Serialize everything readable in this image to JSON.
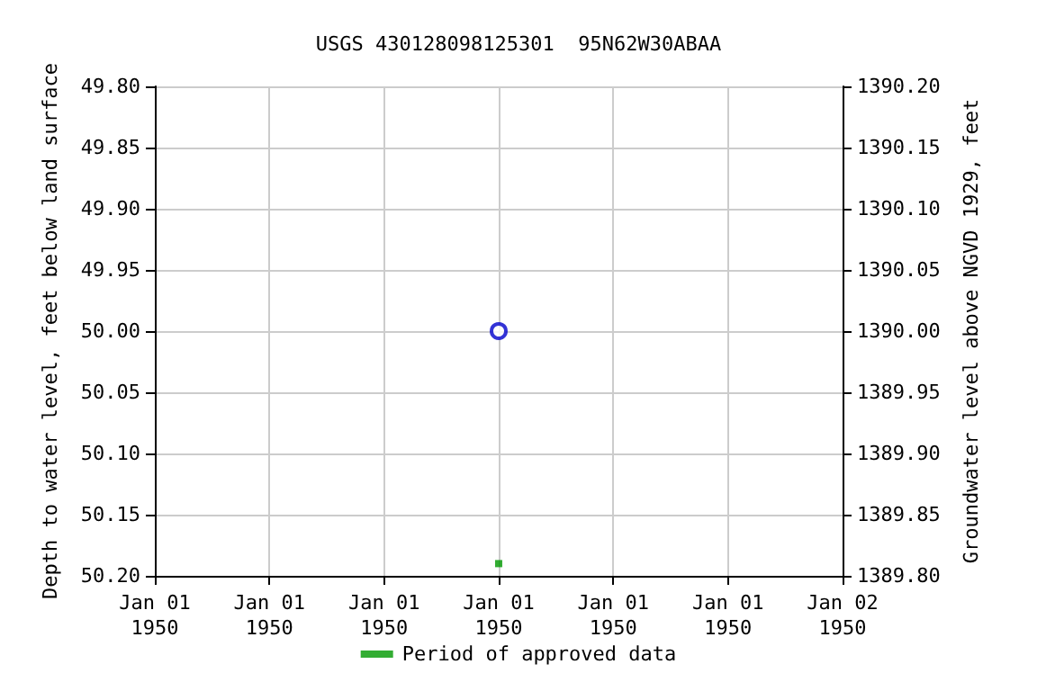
{
  "chart_data": {
    "type": "scatter",
    "title": "USGS 430128098125301  95N62W30ABAA",
    "xlabel": null,
    "ylabel": "Depth to water level, feet below land surface",
    "y2label": "Groundwater level above NGVD 1929, feet",
    "x": [
      "1950-01-01T12:00"
    ],
    "series": [
      {
        "color": "#0000cc",
        "marker": "circle",
        "values": [
          50.0
        ]
      },
      {
        "name": "Period of approved data",
        "color": "#009900",
        "marker": "square",
        "values": [
          50.19
        ]
      }
    ],
    "xlim": [
      "1950-01-01T00:00",
      "1950-01-02T00:00"
    ],
    "xticks": [
      {
        "value": "1950-01-01T00:00",
        "label": "Jan 01\n1950"
      },
      {
        "value": "1950-01-01T04:00",
        "label": "Jan 01\n1950"
      },
      {
        "value": "1950-01-01T08:00",
        "label": "Jan 01\n1950"
      },
      {
        "value": "1950-01-01T12:00",
        "label": "Jan 01\n1950"
      },
      {
        "value": "1950-01-01T16:00",
        "label": "Jan 01\n1950"
      },
      {
        "value": "1950-01-01T20:00",
        "label": "Jan 01\n1950"
      },
      {
        "value": "1950-01-02T00:00",
        "label": "Jan 02\n1950"
      }
    ],
    "ylim": [
      50.2,
      49.8
    ],
    "yticks": [
      {
        "value": 49.8,
        "label": "49.80"
      },
      {
        "value": 49.85,
        "label": "49.85"
      },
      {
        "value": 49.9,
        "label": "49.90"
      },
      {
        "value": 49.95,
        "label": "49.95"
      },
      {
        "value": 50.0,
        "label": "50.00"
      },
      {
        "value": 50.05,
        "label": "50.05"
      },
      {
        "value": 50.1,
        "label": "50.10"
      },
      {
        "value": 50.15,
        "label": "50.15"
      },
      {
        "value": 50.2,
        "label": "50.20"
      }
    ],
    "y2lim": [
      1389.8,
      1390.2
    ],
    "y2ticks": [
      {
        "value": 1390.2,
        "label": "1390.20"
      },
      {
        "value": 1390.15,
        "label": "1390.15"
      },
      {
        "value": 1390.1,
        "label": "1390.10"
      },
      {
        "value": 1390.05,
        "label": "1390.05"
      },
      {
        "value": 1390.0,
        "label": "1390.00"
      },
      {
        "value": 1389.95,
        "label": "1389.95"
      },
      {
        "value": 1389.9,
        "label": "1389.90"
      },
      {
        "value": 1389.85,
        "label": "1389.85"
      },
      {
        "value": 1389.8,
        "label": "1389.80"
      }
    ],
    "grid": true,
    "legend": "bottom"
  }
}
